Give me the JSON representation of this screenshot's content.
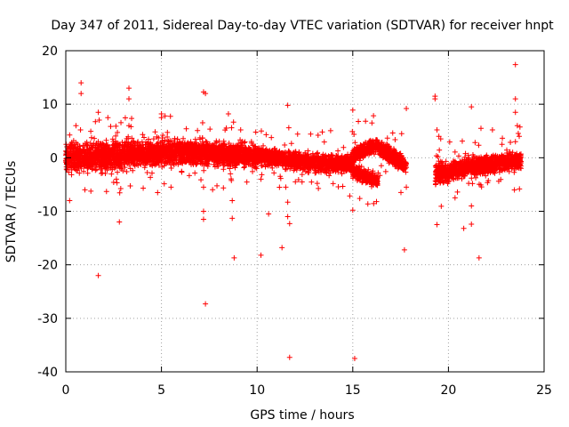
{
  "chart_data": {
    "type": "scatter",
    "title": "Day 347 of 2011, Sidereal Day-to-day VTEC variation (SDTVAR) for receiver hnpt",
    "xlabel": "GPS time / hours",
    "ylabel": "SDTVAR / TECUs",
    "xlim": [
      0,
      25
    ],
    "ylim": [
      -40,
      20
    ],
    "xticks": [
      0,
      5,
      10,
      15,
      20,
      25
    ],
    "yticks": [
      -40,
      -30,
      -20,
      -10,
      0,
      10,
      20
    ],
    "grid": true,
    "marker": "+",
    "color": "#ff0000",
    "dense_bands": [
      {
        "x0": 0.0,
        "x1": 3.0,
        "y_center": [
          0.0,
          0.5
        ],
        "half_width": 2.2
      },
      {
        "x0": 3.0,
        "x1": 6.0,
        "y_center": [
          0.5,
          1.0
        ],
        "half_width": 2.0
      },
      {
        "x0": 6.0,
        "x1": 10.0,
        "y_center": [
          1.0,
          0.3
        ],
        "half_width": 1.8
      },
      {
        "x0": 10.0,
        "x1": 12.5,
        "y_center": [
          0.3,
          -0.8
        ],
        "half_width": 1.2
      },
      {
        "x0": 12.5,
        "x1": 15.0,
        "y_center": [
          -0.8,
          -1.2
        ],
        "half_width": 1.3
      },
      {
        "x0": 15.0,
        "x1": 16.3,
        "y_center": [
          -2.5,
          -4.5
        ],
        "half_width": 1.0
      },
      {
        "x0": 15.0,
        "x1": 16.3,
        "y_center": [
          0.5,
          2.5
        ],
        "half_width": 1.0
      },
      {
        "x0": 16.3,
        "x1": 17.8,
        "y_center": [
          2.0,
          -1.5
        ],
        "half_width": 1.2
      },
      {
        "x0": 19.3,
        "x1": 21.5,
        "y_center": [
          -3.0,
          -1.5
        ],
        "half_width": 1.5
      },
      {
        "x0": 21.5,
        "x1": 23.8,
        "y_center": [
          -1.5,
          -0.5
        ],
        "half_width": 1.3
      }
    ],
    "outliers": [
      {
        "x": 0.2,
        "y": -8
      },
      {
        "x": 0.8,
        "y": 14
      },
      {
        "x": 0.8,
        "y": 12
      },
      {
        "x": 1.0,
        "y": -6
      },
      {
        "x": 1.7,
        "y": 8.5
      },
      {
        "x": 1.7,
        "y": -22
      },
      {
        "x": 2.2,
        "y": 7.5
      },
      {
        "x": 2.8,
        "y": -12
      },
      {
        "x": 3.3,
        "y": 13
      },
      {
        "x": 3.3,
        "y": 11
      },
      {
        "x": 3.3,
        "y": 6
      },
      {
        "x": 4.8,
        "y": -6.5
      },
      {
        "x": 5.0,
        "y": 8.2
      },
      {
        "x": 5.0,
        "y": 7.5
      },
      {
        "x": 7.2,
        "y": 12.3
      },
      {
        "x": 7.3,
        "y": 12
      },
      {
        "x": 7.3,
        "y": -27.3
      },
      {
        "x": 7.2,
        "y": -11.5
      },
      {
        "x": 7.2,
        "y": -10
      },
      {
        "x": 7.2,
        "y": -5.5
      },
      {
        "x": 8.5,
        "y": 8.2
      },
      {
        "x": 8.7,
        "y": -11.3
      },
      {
        "x": 8.8,
        "y": -18.7
      },
      {
        "x": 8.7,
        "y": -8
      },
      {
        "x": 10.2,
        "y": -18.2
      },
      {
        "x": 10.6,
        "y": -10.5
      },
      {
        "x": 10.2,
        "y": -4
      },
      {
        "x": 11.5,
        "y": -5.5
      },
      {
        "x": 11.3,
        "y": -16.8
      },
      {
        "x": 11.6,
        "y": 9.8
      },
      {
        "x": 11.7,
        "y": -37.3
      },
      {
        "x": 11.7,
        "y": -12.3
      },
      {
        "x": 11.6,
        "y": -11
      },
      {
        "x": 11.6,
        "y": -8.3
      },
      {
        "x": 12.0,
        "y": -4.5
      },
      {
        "x": 15.0,
        "y": 8.9
      },
      {
        "x": 15.1,
        "y": -37.5
      },
      {
        "x": 15.0,
        "y": -9.8
      },
      {
        "x": 16.0,
        "y": 6.5
      },
      {
        "x": 17.8,
        "y": 9.2
      },
      {
        "x": 17.7,
        "y": -17.2
      },
      {
        "x": 17.8,
        "y": -5.5
      },
      {
        "x": 19.3,
        "y": 11.5
      },
      {
        "x": 19.3,
        "y": 11
      },
      {
        "x": 19.4,
        "y": -12.5
      },
      {
        "x": 19.4,
        "y": 5.2
      },
      {
        "x": 19.5,
        "y": 4
      },
      {
        "x": 20.8,
        "y": -13.2
      },
      {
        "x": 21.2,
        "y": 9.5
      },
      {
        "x": 21.2,
        "y": -12.4
      },
      {
        "x": 21.2,
        "y": -9
      },
      {
        "x": 21.6,
        "y": -18.7
      },
      {
        "x": 21.7,
        "y": 5.5
      },
      {
        "x": 22.3,
        "y": 5.2
      },
      {
        "x": 22.8,
        "y": 2.5
      },
      {
        "x": 23.5,
        "y": 17.4
      },
      {
        "x": 23.5,
        "y": 11
      },
      {
        "x": 23.5,
        "y": 8.5
      },
      {
        "x": 23.6,
        "y": 6
      },
      {
        "x": 23.7,
        "y": 4
      },
      {
        "x": 23.5,
        "y": 3
      }
    ]
  }
}
